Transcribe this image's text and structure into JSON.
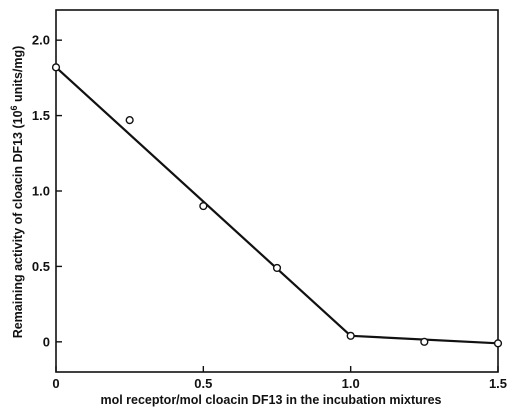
{
  "chart_data": {
    "type": "scatter",
    "title": "",
    "xlabel": "mol receptor/mol cloacin DF13 in the incubation mixtures",
    "ylabel": {
      "before": "Remaining activity of cloacin DF13 (10",
      "superscript": "6",
      "after": " units/mg)"
    },
    "xlim": [
      0,
      1.5
    ],
    "ylim": [
      -0.2,
      2.2
    ],
    "x_ticks": [
      0,
      0.5,
      1.0,
      1.5
    ],
    "x_tick_labels": [
      "0",
      "0.5",
      "1.0",
      "1.5"
    ],
    "y_ticks": [
      0,
      0.5,
      1.0,
      1.5,
      2.0
    ],
    "y_tick_labels": [
      "0",
      "0.5",
      "1.0",
      "1.5",
      "2.0"
    ],
    "grid": false,
    "series": [
      {
        "marker": "open-circle",
        "points": [
          {
            "x": 0,
            "y": 1.82
          },
          {
            "x": 0.25,
            "y": 1.47
          },
          {
            "x": 0.5,
            "y": 0.9
          },
          {
            "x": 0.75,
            "y": 0.49
          },
          {
            "x": 1.0,
            "y": 0.04
          },
          {
            "x": 1.25,
            "y": 0.0
          },
          {
            "x": 1.5,
            "y": -0.01
          }
        ]
      }
    ],
    "fit_line": [
      {
        "x": 0,
        "y": 1.82
      },
      {
        "x": 1.0,
        "y": 0.04
      },
      {
        "x": 1.5,
        "y": -0.01
      }
    ]
  }
}
